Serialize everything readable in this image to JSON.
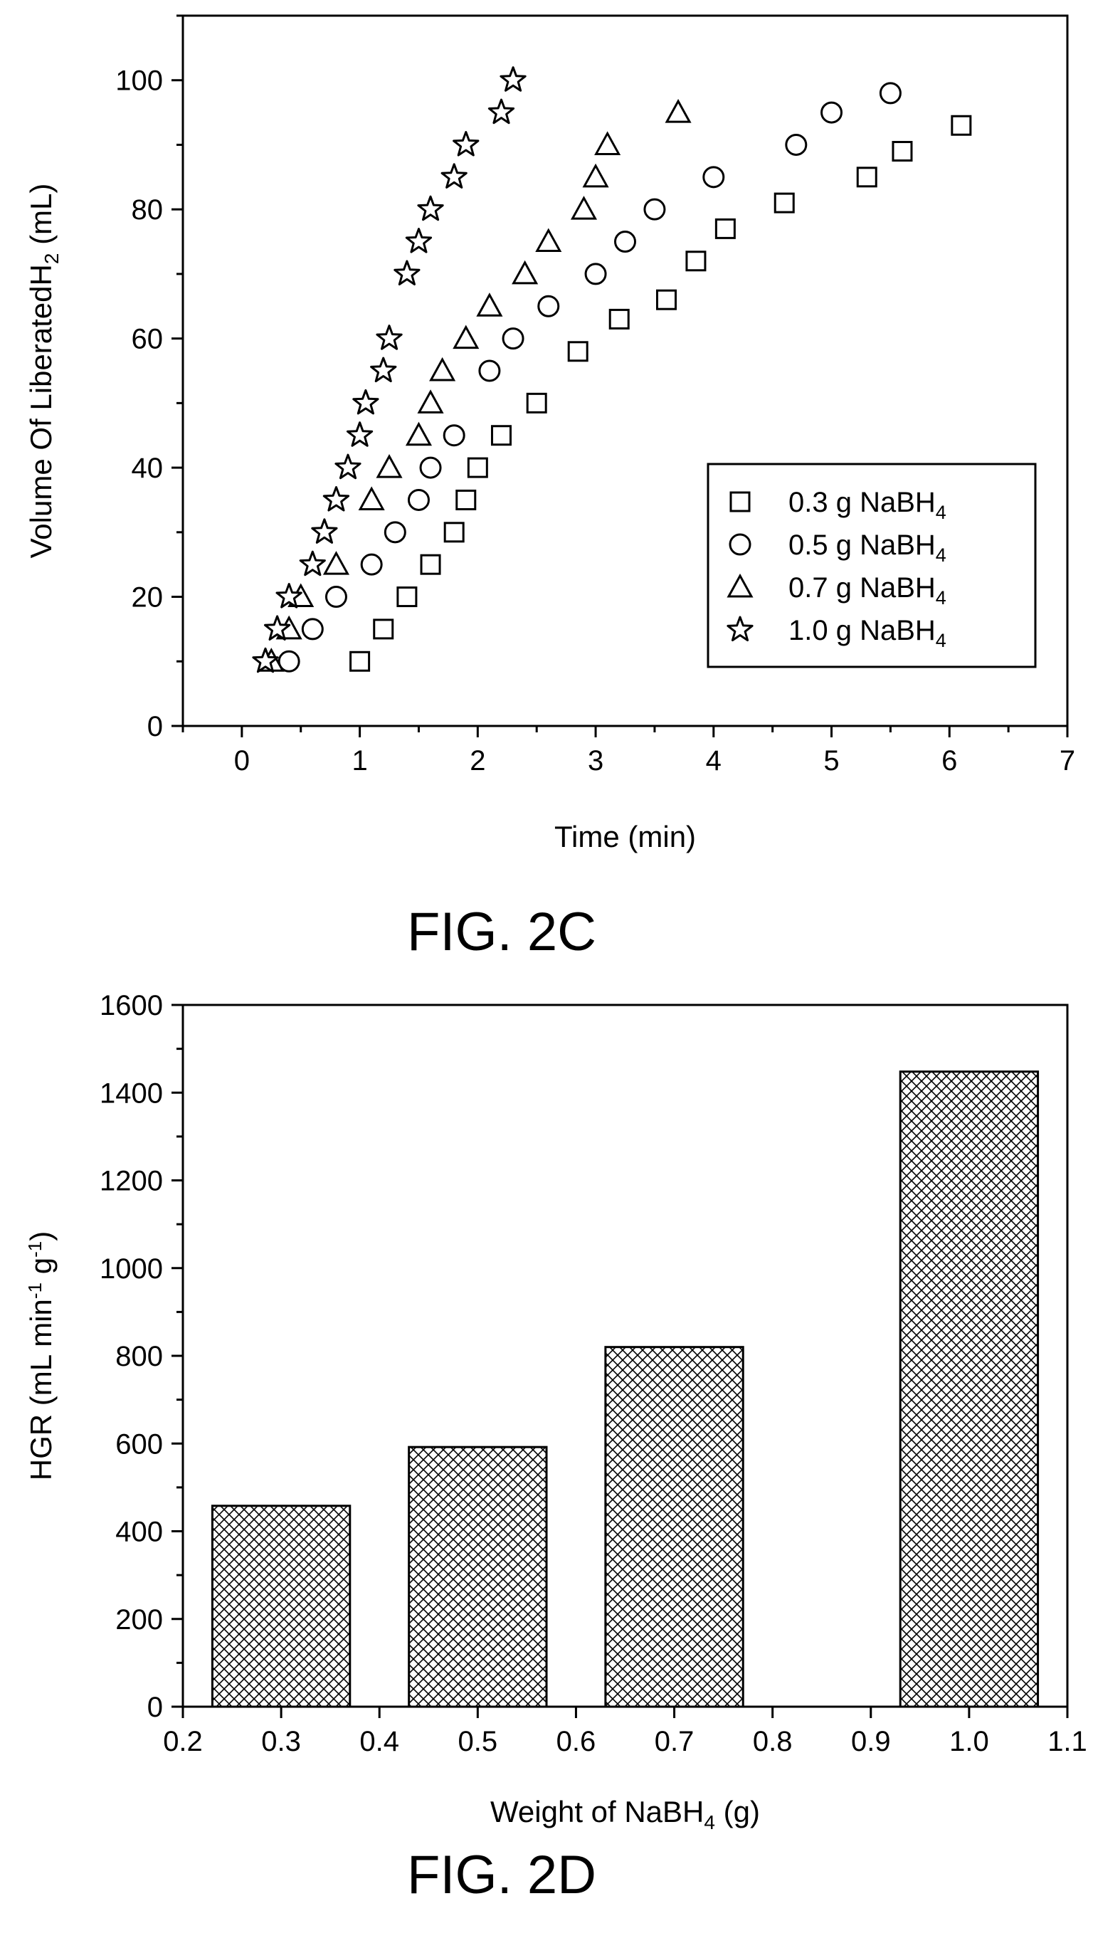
{
  "figures": [
    {
      "caption": "FIG. 2C"
    },
    {
      "caption": "FIG. 2D"
    }
  ],
  "chart_data": [
    {
      "type": "scatter",
      "xlabel": "Time (min)",
      "ylabel_parts": [
        "Volume Of LiberatedH",
        "2",
        " (mL)"
      ],
      "xlim": [
        -0.5,
        7
      ],
      "ylim": [
        0,
        110
      ],
      "xticks": [
        0,
        1,
        2,
        3,
        4,
        5,
        6,
        7
      ],
      "yticks": [
        0,
        20,
        40,
        60,
        80,
        100
      ],
      "legend_position": "bottom-right",
      "series": [
        {
          "name": "0.3 g NaBH4",
          "label_parts": [
            "0.3 g NaBH",
            "4"
          ],
          "marker": "square",
          "x": [
            1.0,
            1.2,
            1.4,
            1.6,
            1.8,
            1.9,
            2.0,
            2.2,
            2.5,
            2.85,
            3.2,
            3.6,
            3.85,
            4.1,
            4.6,
            5.3,
            5.6,
            6.1
          ],
          "y": [
            10,
            15,
            20,
            25,
            30,
            35,
            40,
            45,
            50,
            58,
            63,
            66,
            72,
            77,
            81,
            85,
            89,
            93
          ]
        },
        {
          "name": "0.5 g NaBH4",
          "label_parts": [
            "0.5 g NaBH",
            "4"
          ],
          "marker": "circle",
          "x": [
            0.4,
            0.6,
            0.8,
            1.1,
            1.3,
            1.5,
            1.6,
            1.8,
            2.1,
            2.3,
            2.6,
            3.0,
            3.25,
            3.5,
            4.0,
            4.7,
            5.0,
            5.5
          ],
          "y": [
            10,
            15,
            20,
            25,
            30,
            35,
            40,
            45,
            55,
            60,
            65,
            70,
            75,
            80,
            85,
            90,
            95,
            98
          ]
        },
        {
          "name": "0.7 g NaBH4",
          "label_parts": [
            "0.7 g NaBH",
            "4"
          ],
          "marker": "triangle",
          "x": [
            0.25,
            0.4,
            0.5,
            0.8,
            1.1,
            1.25,
            1.5,
            1.6,
            1.7,
            1.9,
            2.1,
            2.4,
            2.6,
            2.9,
            3.0,
            3.1,
            3.7
          ],
          "y": [
            10,
            15,
            20,
            25,
            35,
            40,
            45,
            50,
            55,
            60,
            65,
            70,
            75,
            80,
            85,
            90,
            95
          ]
        },
        {
          "name": "1.0 g NaBH4",
          "label_parts": [
            "1.0 g NaBH",
            "4"
          ],
          "marker": "star",
          "x": [
            0.2,
            0.3,
            0.4,
            0.6,
            0.7,
            0.8,
            0.9,
            1.0,
            1.05,
            1.2,
            1.25,
            1.4,
            1.5,
            1.6,
            1.8,
            1.9,
            2.2,
            2.3
          ],
          "y": [
            10,
            15,
            20,
            25,
            30,
            35,
            40,
            45,
            50,
            55,
            60,
            70,
            75,
            80,
            85,
            90,
            95,
            100
          ]
        }
      ]
    },
    {
      "type": "bar",
      "xlabel_parts": [
        "Weight of NaBH",
        "4",
        " (g)"
      ],
      "ylabel_parts": [
        "HGR (mL min",
        "-1",
        " g",
        "-1",
        ")"
      ],
      "xlim": [
        0.2,
        1.1
      ],
      "ylim": [
        0,
        1600
      ],
      "xticks": [
        0.2,
        0.3,
        0.4,
        0.5,
        0.6,
        0.7,
        0.8,
        0.9,
        1.0,
        1.1
      ],
      "xtick_labels": [
        "0.2",
        "0.3",
        "0.4",
        "0.5",
        "0.6",
        "0.7",
        "0.8",
        "0.9",
        "1.0",
        "1.1"
      ],
      "yticks": [
        0,
        200,
        400,
        600,
        800,
        1000,
        1200,
        1400,
        1600
      ],
      "x": [
        0.3,
        0.5,
        0.7,
        1.0
      ],
      "values": [
        458,
        592,
        820,
        1448
      ],
      "bar_width": 0.14,
      "fill": "cross-hatch"
    }
  ]
}
